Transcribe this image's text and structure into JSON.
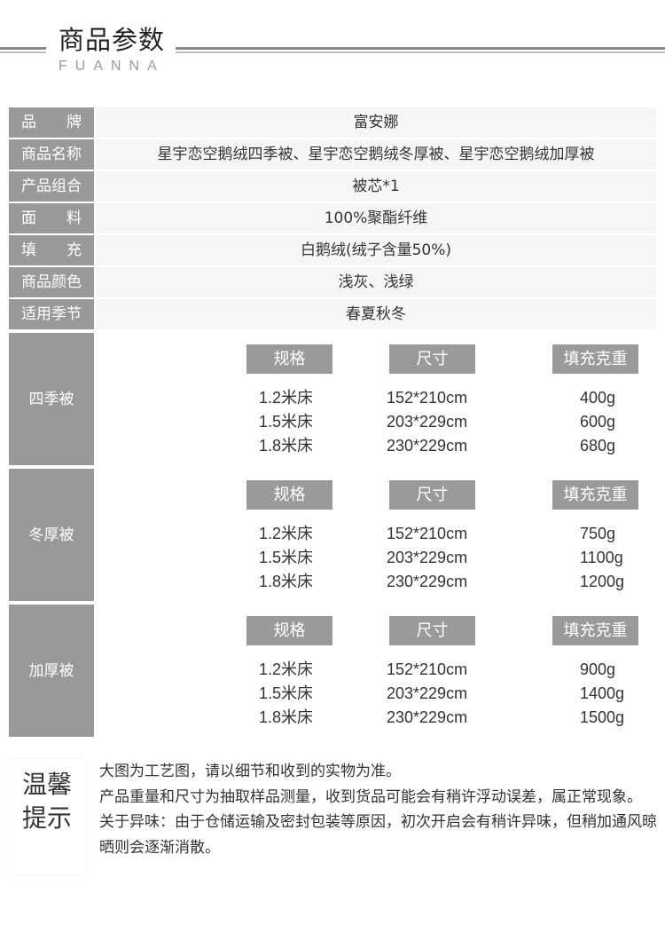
{
  "header": {
    "title": "商品参数",
    "subtitle": "FUANNA"
  },
  "params": [
    {
      "label": "品　牌",
      "split": [
        "品",
        "牌"
      ],
      "value": "富安娜"
    },
    {
      "label": "商品名称",
      "value": "星宇恋空鹅绒四季被、星宇恋空鹅绒冬厚被、星宇恋空鹅绒加厚被"
    },
    {
      "label": "产品组合",
      "value": "被芯*1"
    },
    {
      "label": "面　料",
      "split": [
        "面",
        "料"
      ],
      "value": "100%聚酯纤维"
    },
    {
      "label": "填　充",
      "split": [
        "填",
        "充"
      ],
      "value": "白鹅绒(绒子含量50%)"
    },
    {
      "label": "商品颜色",
      "value": "浅灰、浅绿"
    },
    {
      "label": "适用季节",
      "value": "春夏秋冬"
    }
  ],
  "spec_headers": [
    "规格",
    "尺寸",
    "填充克重"
  ],
  "sections": [
    {
      "name": "四季被",
      "rows": [
        [
          "1.2米床",
          "152*210cm",
          "400g"
        ],
        [
          "1.5米床",
          "203*229cm",
          "600g"
        ],
        [
          "1.8米床",
          "230*229cm",
          "680g"
        ]
      ]
    },
    {
      "name": "冬厚被",
      "rows": [
        [
          "1.2米床",
          "152*210cm",
          "750g"
        ],
        [
          "1.5米床",
          "203*229cm",
          "1100g"
        ],
        [
          "1.8米床",
          "230*229cm",
          "1200g"
        ]
      ]
    },
    {
      "name": "加厚被",
      "rows": [
        [
          "1.2米床",
          "152*210cm",
          "900g"
        ],
        [
          "1.5米床",
          "203*229cm",
          "1400g"
        ],
        [
          "1.8米床",
          "230*229cm",
          "1500g"
        ]
      ]
    }
  ],
  "tips": {
    "title_line1": "温馨",
    "title_line2": "提示",
    "items": [
      "大图为工艺图，请以细节和收到的实物为准。",
      "产品重量和尺寸为抽取样品测量，收到货品可能会有稍许浮动误差，属正常现象。",
      "关于异味：由于仓储运输及密封包装等原因，初次开启会有稍许异味，但稍加通风晾晒则会逐渐消散。"
    ]
  },
  "colors": {
    "label_bg": "#999999",
    "value_bg": "#f6f6f6"
  }
}
